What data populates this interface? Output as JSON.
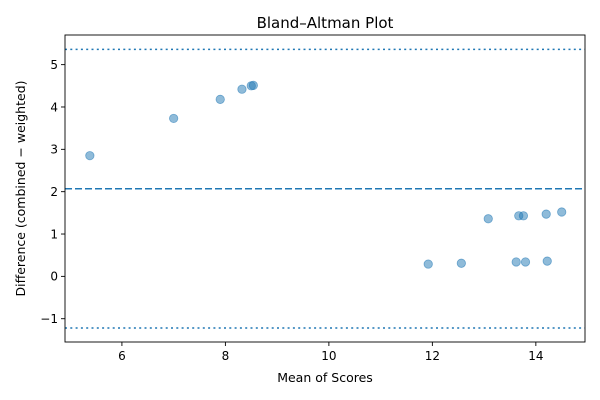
{
  "chart_data": {
    "type": "scatter",
    "title": "Bland–Altman Plot",
    "xlabel": "Mean of Scores",
    "ylabel": "Difference (combined − weighted)",
    "xlim": [
      4.9,
      14.95
    ],
    "ylim": [
      -1.55,
      5.7
    ],
    "xticks": [
      6,
      8,
      10,
      12,
      14
    ],
    "yticks": [
      -1,
      0,
      1,
      2,
      3,
      4,
      5
    ],
    "grid": false,
    "legend": "none",
    "point_color": "#1f77b4",
    "point_alpha": 0.5,
    "line_color": "#1f77b4",
    "mean_difference": 2.07,
    "upper_limit": 5.36,
    "lower_limit": -1.22,
    "points": [
      {
        "x": 5.38,
        "y": 2.85
      },
      {
        "x": 7.0,
        "y": 3.73
      },
      {
        "x": 7.9,
        "y": 4.18
      },
      {
        "x": 8.32,
        "y": 4.42
      },
      {
        "x": 8.5,
        "y": 4.5
      },
      {
        "x": 8.54,
        "y": 4.51
      },
      {
        "x": 11.92,
        "y": 0.29
      },
      {
        "x": 12.56,
        "y": 0.31
      },
      {
        "x": 13.08,
        "y": 1.36
      },
      {
        "x": 13.62,
        "y": 0.34
      },
      {
        "x": 13.67,
        "y": 1.43
      },
      {
        "x": 13.76,
        "y": 1.43
      },
      {
        "x": 13.8,
        "y": 0.34
      },
      {
        "x": 14.2,
        "y": 1.47
      },
      {
        "x": 14.22,
        "y": 0.36
      },
      {
        "x": 14.5,
        "y": 1.52
      }
    ]
  }
}
